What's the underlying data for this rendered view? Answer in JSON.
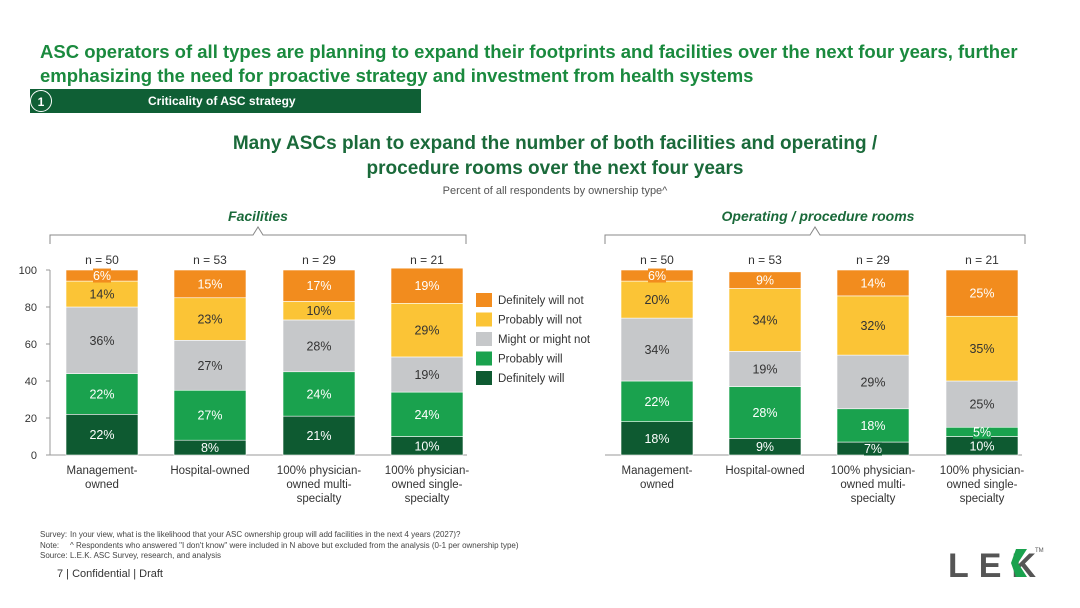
{
  "headline": "ASC operators of all types are planning to expand their footprints and facilities over the next four years, further emphasizing the need for proactive strategy and investment from health systems",
  "section": {
    "number": "1",
    "label": "Criticality of ASC strategy"
  },
  "subtitle": "Many ASCs plan to expand the number of both facilities and operating / procedure rooms over the next four years",
  "caption": "Percent of all respondents by ownership type^",
  "colors": {
    "definitely_will_not": "#f28c1e",
    "probably_will_not": "#fbc436",
    "might_or_might_not": "#c6c8ca",
    "probably_will": "#1aa24e",
    "definitely_will": "#0e5a31"
  },
  "chart_data": [
    {
      "type": "bar",
      "stacked": true,
      "title": "Facilities",
      "ylim": [
        0,
        100
      ],
      "yticks": [
        0,
        20,
        40,
        60,
        80,
        100
      ],
      "categories": [
        [
          "Management-",
          "owned"
        ],
        [
          "Hospital-owned"
        ],
        [
          "100% physician-",
          "owned multi-",
          "specialty"
        ],
        [
          "100% physician-",
          "owned single-",
          "specialty"
        ]
      ],
      "n_labels": [
        "n = 50",
        "n = 53",
        "n = 29",
        "n = 21"
      ],
      "series": [
        {
          "name": "Definitely will",
          "key": "definitely_will",
          "values": [
            22,
            8,
            21,
            10
          ]
        },
        {
          "name": "Probably will",
          "key": "probably_will",
          "values": [
            22,
            27,
            24,
            24
          ]
        },
        {
          "name": "Might or might not",
          "key": "might_or_might_not",
          "values": [
            36,
            27,
            28,
            19
          ]
        },
        {
          "name": "Probably will not",
          "key": "probably_will_not",
          "values": [
            14,
            23,
            10,
            29
          ]
        },
        {
          "name": "Definitely will not",
          "key": "definitely_will_not",
          "values": [
            6,
            15,
            17,
            19
          ]
        }
      ]
    },
    {
      "type": "bar",
      "stacked": true,
      "title": "Operating / procedure rooms",
      "ylim": [
        0,
        100
      ],
      "categories": [
        [
          "Management-",
          "owned"
        ],
        [
          "Hospital-owned"
        ],
        [
          "100% physician-",
          "owned multi-",
          "specialty"
        ],
        [
          "100% physician-",
          "owned single-",
          "specialty"
        ]
      ],
      "n_labels": [
        "n = 50",
        "n = 53",
        "n = 29",
        "n = 21"
      ],
      "series": [
        {
          "name": "Definitely will",
          "key": "definitely_will",
          "values": [
            18,
            9,
            7,
            10
          ]
        },
        {
          "name": "Probably will",
          "key": "probably_will",
          "values": [
            22,
            28,
            18,
            5
          ]
        },
        {
          "name": "Might or might not",
          "key": "might_or_might_not",
          "values": [
            34,
            19,
            29,
            25
          ]
        },
        {
          "name": "Probably will not",
          "key": "probably_will_not",
          "values": [
            20,
            34,
            32,
            35
          ]
        },
        {
          "name": "Definitely will not",
          "key": "definitely_will_not",
          "values": [
            6,
            9,
            14,
            25
          ]
        }
      ]
    }
  ],
  "legend": [
    {
      "label": "Definitely will not",
      "key": "definitely_will_not"
    },
    {
      "label": "Probably will not",
      "key": "probably_will_not"
    },
    {
      "label": "Might or might not",
      "key": "might_or_might_not"
    },
    {
      "label": "Probably will",
      "key": "probably_will"
    },
    {
      "label": "Definitely will",
      "key": "definitely_will"
    }
  ],
  "footnotes": [
    {
      "label": "Survey:",
      "text": "In your view, what is the likelihood that your ASC ownership group will add facilities in the next 4 years (2027)?"
    },
    {
      "label": "Note:",
      "text": "^ Respondents who answered \"I don't know\" were included in N above but excluded from the analysis (0-1 per ownership type)"
    },
    {
      "label": "Source:",
      "text": "L.E.K. ASC Survey, research, and analysis"
    }
  ],
  "footer": "7 | Confidential | Draft",
  "logo": {
    "text": "LEK",
    "tm": "TM"
  }
}
